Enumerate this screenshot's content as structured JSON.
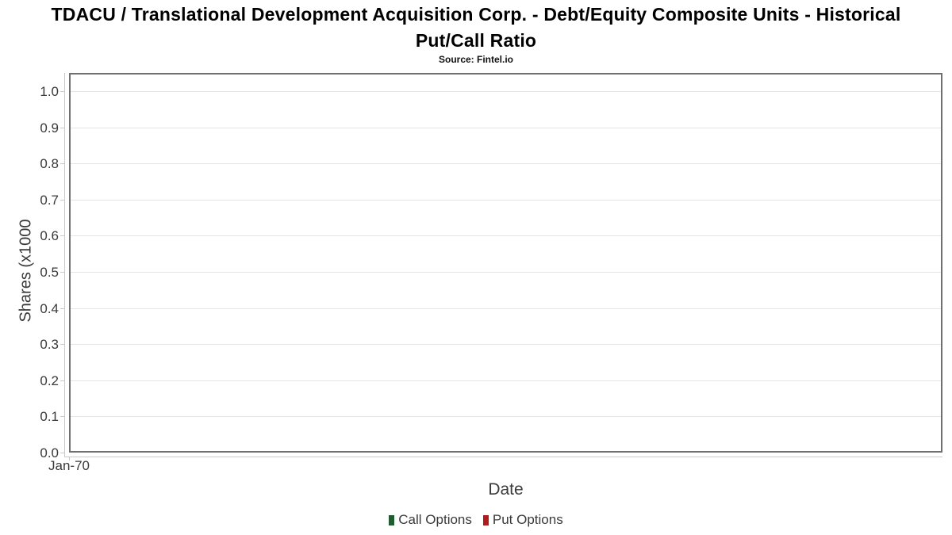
{
  "header": {
    "title": "TDACU / Translational Development Acquisition Corp. - Debt/Equity Composite Units - Historical Put/Call Ratio",
    "subtitle": "Source: Fintel.io"
  },
  "chart_data": {
    "type": "line",
    "title": "TDACU / Translational Development Acquisition Corp. - Debt/Equity Composite Units - Historical Put/Call Ratio",
    "subtitle": "Source: Fintel.io",
    "xlabel": "Date",
    "ylabel": "Shares (x1000",
    "ylim": [
      0.0,
      1.0
    ],
    "y_ticks": [
      0.0,
      0.1,
      0.2,
      0.3,
      0.4,
      0.5,
      0.6,
      0.7,
      0.8,
      0.9,
      1.0
    ],
    "x_tick_labels": [
      "Jan-70"
    ],
    "grid": "horizontal",
    "legend_position": "bottom",
    "series": [
      {
        "name": "Call Options",
        "color": "#215c30",
        "x": [],
        "values": []
      },
      {
        "name": "Put Options",
        "color": "#b01c1c",
        "x": [],
        "values": []
      }
    ]
  },
  "colors": {
    "plot_border": "#6f6f6f",
    "gridline": "#e4e4e4",
    "axis_line": "#c9c9c9",
    "tick_text": "#3a3a3a",
    "title_text": "#000000",
    "call_options": "#215c30",
    "put_options": "#b01c1c"
  }
}
